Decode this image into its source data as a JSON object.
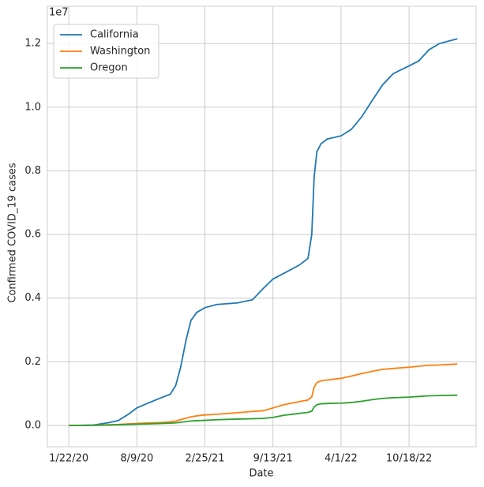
{
  "chart_data": {
    "type": "line",
    "x_label": "Date",
    "y_label": "Confirmed COVID_19 cases",
    "y_offset_label": "1e7",
    "x": [
      "2020-01-22",
      "2020-04-01",
      "2020-05-15",
      "2020-06-15",
      "2020-07-15",
      "2020-08-09",
      "2020-09-15",
      "2020-10-15",
      "2020-11-15",
      "2020-12-01",
      "2020-12-15",
      "2021-01-01",
      "2021-01-15",
      "2021-02-01",
      "2021-02-25",
      "2021-04-01",
      "2021-06-01",
      "2021-07-15",
      "2021-08-15",
      "2021-09-13",
      "2021-10-15",
      "2021-12-01",
      "2021-12-25",
      "2022-01-05",
      "2022-01-12",
      "2022-01-20",
      "2022-02-01",
      "2022-02-20",
      "2022-04-01",
      "2022-05-01",
      "2022-06-01",
      "2022-07-01",
      "2022-08-01",
      "2022-09-01",
      "2022-10-18",
      "2022-11-15",
      "2022-12-15",
      "2023-01-15",
      "2023-03-09"
    ],
    "series": [
      {
        "name": "California",
        "color": "#1f77b4",
        "values": [
          0,
          0.001,
          0.008,
          0.015,
          0.035,
          0.055,
          0.072,
          0.085,
          0.098,
          0.125,
          0.18,
          0.27,
          0.33,
          0.355,
          0.37,
          0.38,
          0.385,
          0.395,
          0.43,
          0.46,
          0.478,
          0.505,
          0.525,
          0.6,
          0.78,
          0.86,
          0.885,
          0.9,
          0.91,
          0.93,
          0.97,
          1.02,
          1.07,
          1.105,
          1.13,
          1.145,
          1.18,
          1.2,
          1.215
        ]
      },
      {
        "name": "Washington",
        "color": "#ff7f0e",
        "values": [
          0,
          0.0005,
          0.002,
          0.003,
          0.005,
          0.006,
          0.008,
          0.009,
          0.011,
          0.014,
          0.018,
          0.023,
          0.027,
          0.03,
          0.033,
          0.035,
          0.04,
          0.044,
          0.046,
          0.055,
          0.065,
          0.075,
          0.08,
          0.09,
          0.12,
          0.135,
          0.14,
          0.143,
          0.148,
          0.155,
          0.163,
          0.17,
          0.176,
          0.179,
          0.183,
          0.186,
          0.189,
          0.19,
          0.193
        ]
      },
      {
        "name": "Oregon",
        "color": "#2ca02c",
        "values": [
          0,
          0.0003,
          0.001,
          0.002,
          0.003,
          0.004,
          0.005,
          0.006,
          0.007,
          0.008,
          0.01,
          0.012,
          0.014,
          0.015,
          0.016,
          0.018,
          0.02,
          0.021,
          0.022,
          0.025,
          0.032,
          0.038,
          0.041,
          0.045,
          0.058,
          0.065,
          0.068,
          0.069,
          0.07,
          0.072,
          0.076,
          0.081,
          0.085,
          0.087,
          0.089,
          0.091,
          0.093,
          0.094,
          0.095
        ]
      }
    ],
    "xlim": [
      "2019-11-20",
      "2023-05-03"
    ],
    "xticks": [
      {
        "value": "2020-01-22",
        "label": "1/22/20"
      },
      {
        "value": "2020-08-09",
        "label": "8/9/20"
      },
      {
        "value": "2021-02-25",
        "label": "2/25/21"
      },
      {
        "value": "2021-09-13",
        "label": "9/13/21"
      },
      {
        "value": "2022-04-01",
        "label": "4/1/22"
      },
      {
        "value": "2022-10-18",
        "label": "10/18/22"
      }
    ],
    "ylim": [
      -0.067,
      1.317
    ],
    "yticks": [
      {
        "value": 0,
        "label": "0.0"
      },
      0.2,
      0.4,
      0.6,
      0.8,
      {
        "value": 1,
        "label": "1.0"
      },
      1.2
    ],
    "grid": true,
    "legend": "upper left"
  }
}
